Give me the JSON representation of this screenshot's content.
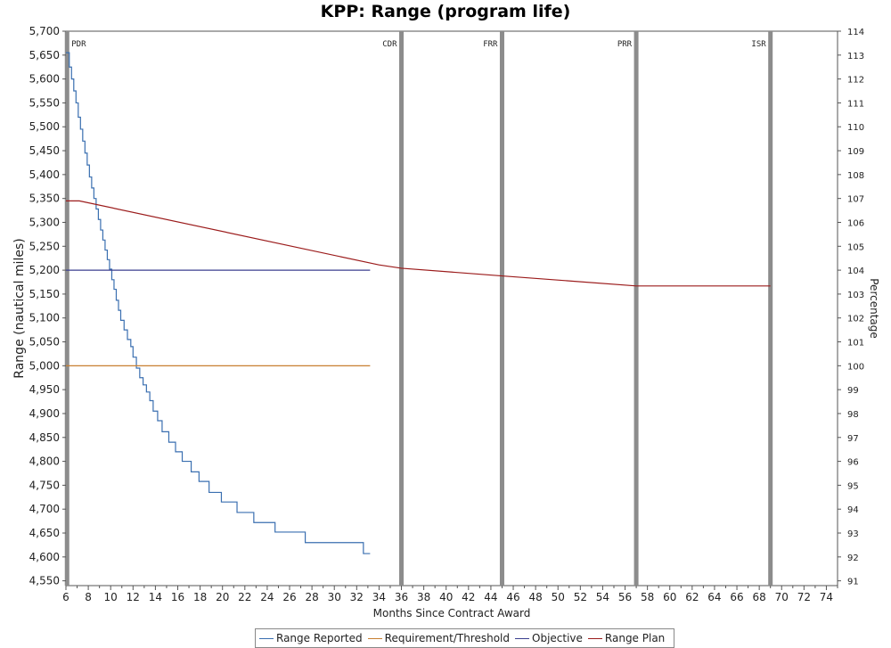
{
  "chart_data": {
    "type": "line",
    "title": "KPP: Range (program life)",
    "xlabel": "Months Since Contract Award",
    "ylabel": "Range (nautical miles)",
    "y2label": "Percentage",
    "xlim": [
      6,
      75
    ],
    "ylim": [
      4540,
      5700
    ],
    "y2lim": [
      90.8,
      114
    ],
    "x_ticks": [
      6,
      8,
      10,
      12,
      14,
      16,
      18,
      20,
      22,
      24,
      26,
      28,
      30,
      32,
      34,
      36,
      38,
      40,
      42,
      44,
      46,
      48,
      50,
      52,
      54,
      56,
      58,
      60,
      62,
      64,
      66,
      68,
      70,
      72,
      74
    ],
    "y_ticks": [
      4550,
      4600,
      4650,
      4700,
      4750,
      4800,
      4850,
      4900,
      4950,
      5000,
      5050,
      5100,
      5150,
      5200,
      5250,
      5300,
      5350,
      5400,
      5450,
      5500,
      5550,
      5600,
      5650,
      5700
    ],
    "y_tick_labels": [
      "4,550",
      "4,600",
      "4,650",
      "4,700",
      "4,750",
      "4,800",
      "4,850",
      "4,900",
      "4,950",
      "5,000",
      "5,050",
      "5,100",
      "5,150",
      "5,200",
      "5,250",
      "5,300",
      "5,350",
      "5,400",
      "5,450",
      "5,500",
      "5,550",
      "5,600",
      "5,650",
      "5,700"
    ],
    "y2_ticks": [
      91,
      92,
      93,
      94,
      95,
      96,
      97,
      98,
      99,
      100,
      101,
      102,
      103,
      104,
      105,
      106,
      107,
      108,
      109,
      110,
      111,
      112,
      113,
      114
    ],
    "milestones": [
      {
        "label": "PDR",
        "x": 6.1
      },
      {
        "label": "CDR",
        "x": 36
      },
      {
        "label": "FRR",
        "x": 45
      },
      {
        "label": "PRR",
        "x": 57
      },
      {
        "label": "ISR",
        "x": 69
      }
    ],
    "series": [
      {
        "name": "Range Reported",
        "color": "#3a6fb0",
        "step": true,
        "points": [
          [
            6,
            5655
          ],
          [
            6.3,
            5625
          ],
          [
            6.5,
            5600
          ],
          [
            6.7,
            5575
          ],
          [
            6.9,
            5550
          ],
          [
            7.1,
            5520
          ],
          [
            7.3,
            5495
          ],
          [
            7.5,
            5470
          ],
          [
            7.7,
            5445
          ],
          [
            7.9,
            5420
          ],
          [
            8.1,
            5395
          ],
          [
            8.3,
            5372
          ],
          [
            8.5,
            5350
          ],
          [
            8.7,
            5328
          ],
          [
            8.9,
            5306
          ],
          [
            9.1,
            5284
          ],
          [
            9.3,
            5263
          ],
          [
            9.5,
            5242
          ],
          [
            9.7,
            5222
          ],
          [
            9.9,
            5202
          ],
          [
            10.1,
            5180
          ],
          [
            10.3,
            5160
          ],
          [
            10.5,
            5137
          ],
          [
            10.7,
            5116
          ],
          [
            10.9,
            5095
          ],
          [
            11.2,
            5075
          ],
          [
            11.5,
            5055
          ],
          [
            11.8,
            5040
          ],
          [
            12.0,
            5018
          ],
          [
            12.3,
            4995
          ],
          [
            12.6,
            4975
          ],
          [
            12.9,
            4960
          ],
          [
            13.2,
            4945
          ],
          [
            13.5,
            4927
          ],
          [
            13.8,
            4905
          ],
          [
            14.2,
            4885
          ],
          [
            14.6,
            4862
          ],
          [
            15.2,
            4840
          ],
          [
            15.8,
            4820
          ],
          [
            16.4,
            4800
          ],
          [
            17.2,
            4778
          ],
          [
            17.9,
            4758
          ],
          [
            18.8,
            4735
          ],
          [
            19.9,
            4715
          ],
          [
            21.3,
            4693
          ],
          [
            22.8,
            4672
          ],
          [
            24.7,
            4652
          ],
          [
            27.4,
            4630
          ],
          [
            32.6,
            4607
          ],
          [
            33.2,
            4607
          ]
        ]
      },
      {
        "name": "Requirement/Threshold",
        "color": "#c87f30",
        "points": [
          [
            6,
            5000
          ],
          [
            33.2,
            5000
          ]
        ]
      },
      {
        "name": "Objective",
        "color": "#3b3f8f",
        "points": [
          [
            6,
            5200
          ],
          [
            33.2,
            5200
          ]
        ]
      },
      {
        "name": "Range Plan",
        "color": "#9b1b1b",
        "points": [
          [
            6,
            5345
          ],
          [
            7.2,
            5345
          ],
          [
            34,
            5211
          ],
          [
            36,
            5204
          ],
          [
            45,
            5188
          ],
          [
            57,
            5167
          ],
          [
            69,
            5167
          ]
        ]
      }
    ]
  }
}
